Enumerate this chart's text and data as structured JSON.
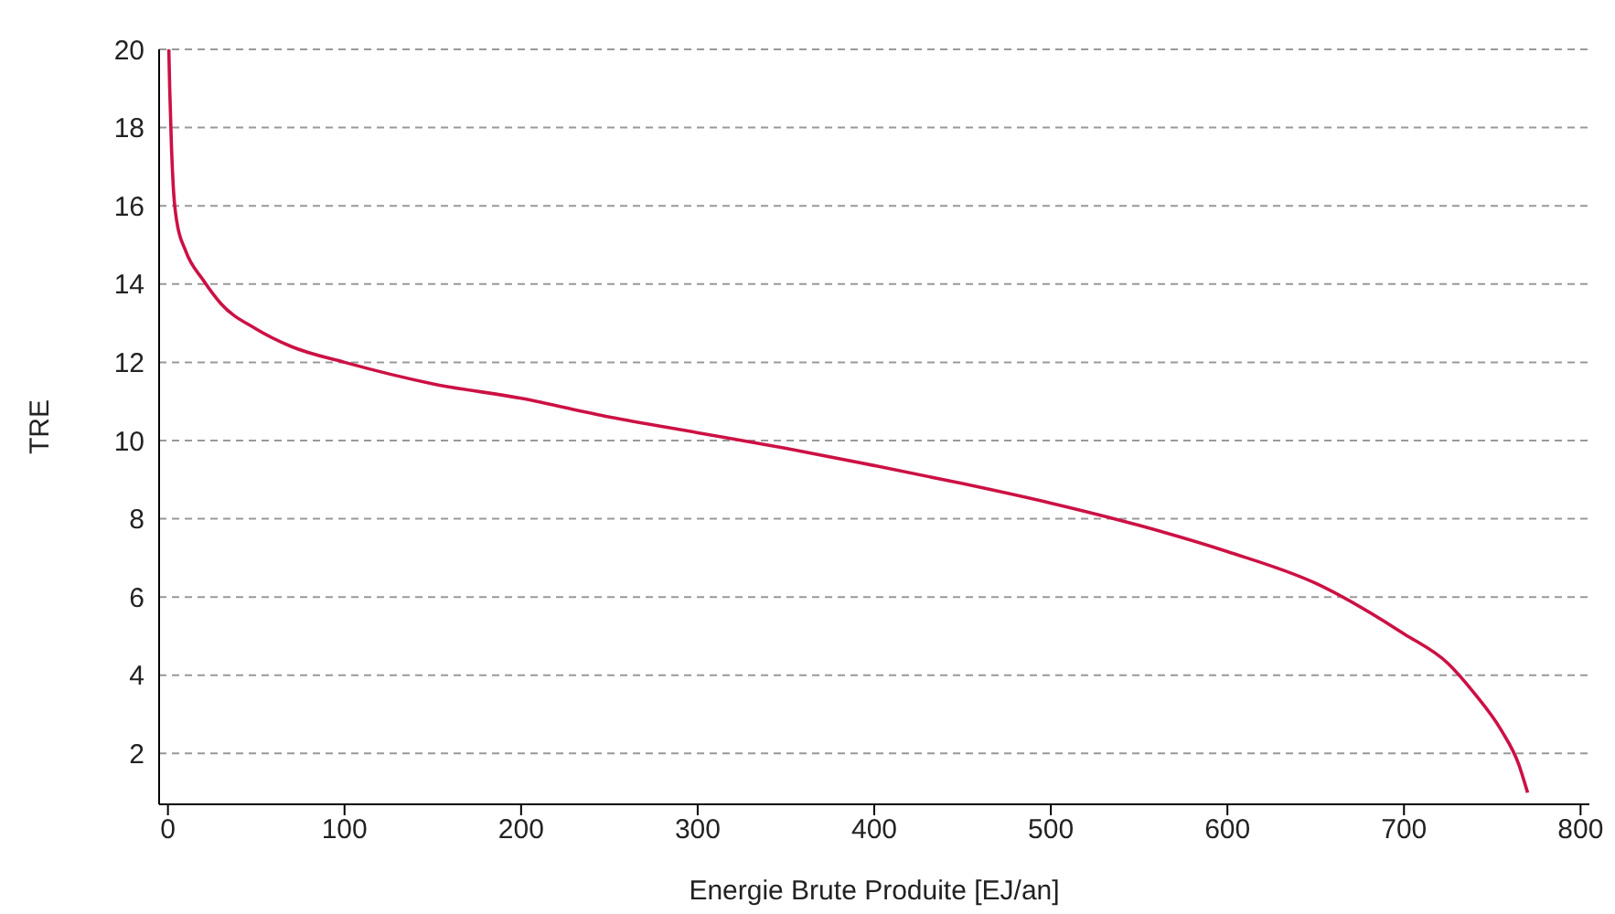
{
  "chart_data": {
    "type": "line",
    "xlabel": "Energie Brute Produite [EJ/an]",
    "ylabel": "TRE",
    "x": [
      0.5,
      1,
      2,
      3,
      5,
      10,
      20,
      30,
      50,
      70,
      100,
      150,
      200,
      250,
      300,
      350,
      400,
      450,
      500,
      550,
      600,
      650,
      700,
      725,
      740,
      755,
      765,
      770
    ],
    "series": [
      {
        "color": "#cc1144",
        "values": [
          20,
          19,
          17.5,
          16.5,
          15.6,
          14.85,
          14.1,
          13.5,
          12.85,
          12.4,
          12.0,
          11.45,
          11.08,
          10.6,
          10.2,
          9.8,
          9.36,
          8.9,
          8.4,
          7.83,
          7.16,
          6.35,
          5.06,
          4.3,
          3.53,
          2.6,
          1.72,
          1.0
        ]
      }
    ],
    "xlim": [
      -5,
      805
    ],
    "xticks": [
      0,
      100,
      200,
      300,
      400,
      500,
      600,
      700,
      800
    ],
    "ylim": [
      0.7,
      20
    ],
    "yticks": [
      2,
      4,
      6,
      8,
      10,
      12,
      14,
      16,
      18,
      20
    ],
    "grid": "y",
    "marker": "none",
    "line_style": "solid"
  }
}
